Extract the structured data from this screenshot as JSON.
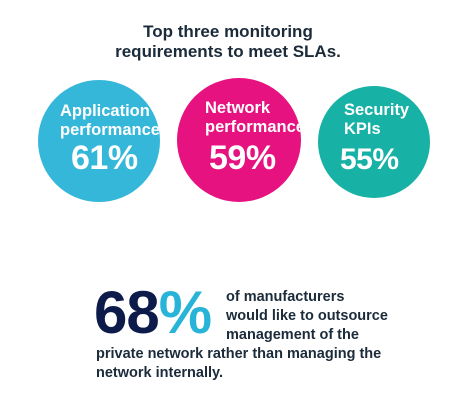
{
  "title": {
    "line1": "Top three monitoring",
    "line2": "requirements to meet SLAs."
  },
  "chart_data": {
    "type": "bubble",
    "title": "Top three monitoring requirements to meet SLAs.",
    "categories": [
      "Application performance",
      "Network performance",
      "Security KPIs"
    ],
    "values": [
      61,
      59,
      55
    ],
    "unit": "%",
    "items": [
      {
        "label_lines": [
          "Application",
          "performance"
        ],
        "value_text": "61%",
        "value": 61,
        "color": "#35b7da"
      },
      {
        "label_lines": [
          "Network",
          "performance"
        ],
        "value_text": "59%",
        "value": 59,
        "color": "#e5127f"
      },
      {
        "label_lines": [
          "Security",
          "KPIs"
        ],
        "value_text": "55%",
        "value": 55,
        "color": "#17b1a6"
      }
    ]
  },
  "stat": {
    "number": "68",
    "percent_sign": "%",
    "value": 68,
    "number_color": "#0d1b4b",
    "percent_color": "#28b3d8",
    "lines": [
      "of manufacturers",
      "would like to outsource",
      "management of the",
      "private network rather than managing the",
      "network internally."
    ]
  }
}
